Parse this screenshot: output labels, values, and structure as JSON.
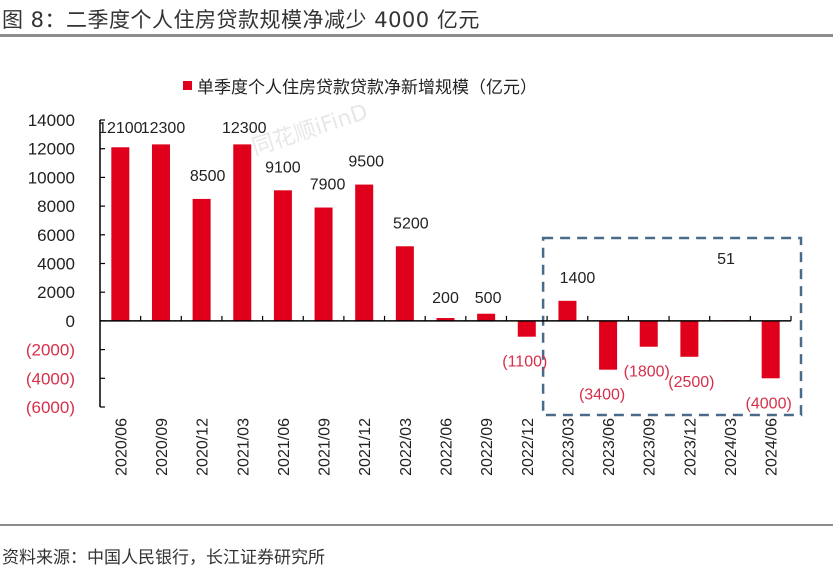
{
  "figure": {
    "title": "图 8：二季度个人住房贷款规模净减少 4000 亿元",
    "source": "资料来源：中国人民银行，长江证券研究所",
    "watermark": "同花顺iFinD"
  },
  "colors": {
    "bar": "#e0001b",
    "negative_label": "#d6304a",
    "positive_label": "#222222",
    "axis": "#000000",
    "highlight_box": "#4a6a8a"
  },
  "chart_data": {
    "type": "bar",
    "title": "",
    "legend": {
      "label": "单季度个人住房贷款贷款净新增规模（亿元）",
      "position": "top-center"
    },
    "xlabel": "",
    "ylabel": "",
    "ylim": [
      -6000,
      14000
    ],
    "yticks": [
      14000,
      12000,
      10000,
      8000,
      6000,
      4000,
      2000,
      0,
      -2000,
      -4000,
      -6000
    ],
    "ytick_labels": [
      "14000",
      "12000",
      "10000",
      "8000",
      "6000",
      "4000",
      "2000",
      "0",
      "(2000)",
      "(4000)",
      "(6000)"
    ],
    "categories": [
      "2020/06",
      "2020/09",
      "2020/12",
      "2021/03",
      "2021/06",
      "2021/09",
      "2021/12",
      "2022/03",
      "2022/06",
      "2022/09",
      "2022/12",
      "2023/03",
      "2023/06",
      "2023/09",
      "2023/12",
      "2024/03",
      "2024/06"
    ],
    "values": [
      12100,
      12300,
      8500,
      12300,
      9100,
      7900,
      9500,
      5200,
      200,
      500,
      -1100,
      1400,
      -3400,
      -1800,
      -2500,
      51,
      -4000
    ],
    "data_labels": [
      "12100",
      "12300",
      "8500",
      "12300",
      "9100",
      "7900",
      "9500",
      "5200",
      "200",
      "500",
      "(1100)",
      "1400",
      "(3400)",
      "(1800)",
      "(2500)",
      "51",
      "(4000)"
    ],
    "highlight": {
      "from": "2023/03",
      "to": "2024/06",
      "style": "dashed-box"
    },
    "grid": false
  }
}
